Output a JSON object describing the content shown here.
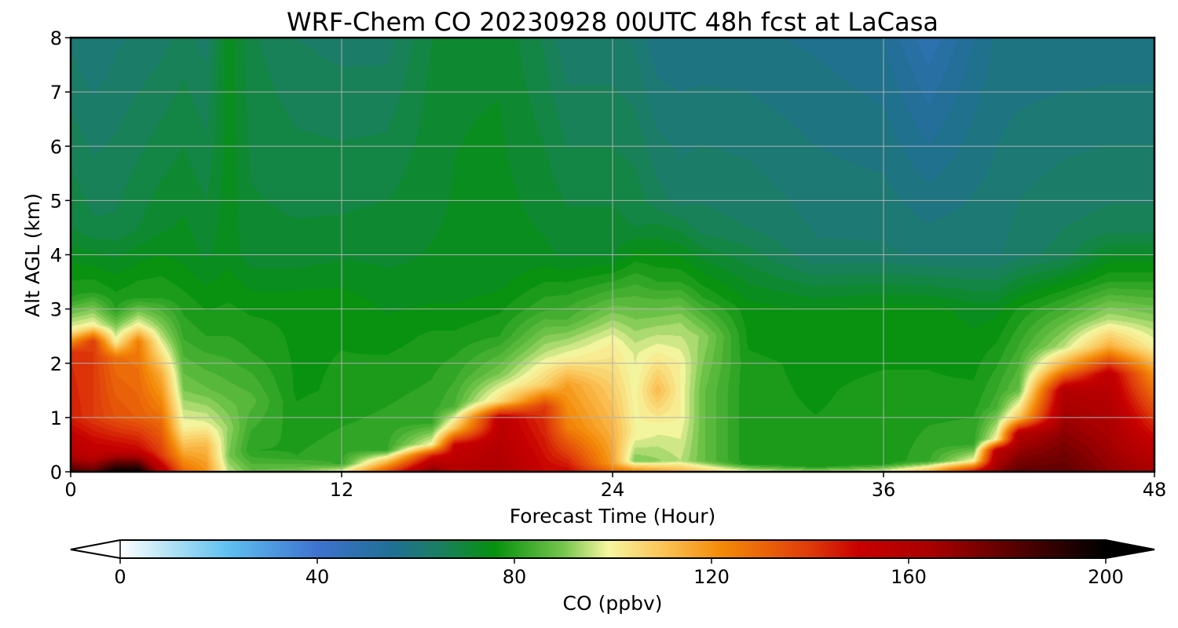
{
  "chart_data": {
    "type": "heatmap",
    "title": "WRF-Chem CO  20230928 00UTC 48h fcst at LaCasa",
    "xlabel": "Forecast Time (Hour)",
    "ylabel": "Alt AGL (km)",
    "xlim": [
      0,
      48
    ],
    "ylim": [
      0,
      8
    ],
    "xticks": [
      "0",
      "12",
      "24",
      "36",
      "48"
    ],
    "yticks": [
      "0",
      "1",
      "2",
      "3",
      "4",
      "5",
      "6",
      "7",
      "8"
    ],
    "grid": true,
    "colorbar": {
      "label": "CO  (ppbv)",
      "range": [
        0,
        200
      ],
      "ticks": [
        "0",
        "40",
        "80",
        "120",
        "160",
        "200"
      ],
      "extend": "both",
      "orientation": "horizontal",
      "position": "bottom",
      "colors": [
        {
          "v": 0,
          "c": "#ffffff"
        },
        {
          "v": 10,
          "c": "#b3e2f5"
        },
        {
          "v": 22,
          "c": "#5ebff0"
        },
        {
          "v": 40,
          "c": "#3e73d0"
        },
        {
          "v": 55,
          "c": "#206f95"
        },
        {
          "v": 65,
          "c": "#1a7f60"
        },
        {
          "v": 76,
          "c": "#06910e"
        },
        {
          "v": 90,
          "c": "#76c64d"
        },
        {
          "v": 99,
          "c": "#f6f6a0"
        },
        {
          "v": 110,
          "c": "#fbc458"
        },
        {
          "v": 122,
          "c": "#f48a08"
        },
        {
          "v": 140,
          "c": "#df3a0a"
        },
        {
          "v": 150,
          "c": "#c80000"
        },
        {
          "v": 165,
          "c": "#a80000"
        },
        {
          "v": 180,
          "c": "#5e0000"
        },
        {
          "v": 200,
          "c": "#000000"
        }
      ]
    },
    "series": [
      {
        "x": 0,
        "profile": [
          [
            0,
            185
          ],
          [
            0.3,
            160
          ],
          [
            1.0,
            145
          ],
          [
            2.2,
            142
          ],
          [
            2.6,
            100
          ],
          [
            3.2,
            80
          ],
          [
            4.5,
            70
          ],
          [
            8,
            62
          ]
        ]
      },
      {
        "x": 1,
        "profile": [
          [
            0,
            180
          ],
          [
            0.3,
            155
          ],
          [
            1.0,
            140
          ],
          [
            2.4,
            140
          ],
          [
            2.7,
            100
          ],
          [
            3.3,
            80
          ],
          [
            4.5,
            68
          ],
          [
            8,
            60
          ]
        ]
      },
      {
        "x": 2,
        "profile": [
          [
            0,
            200
          ],
          [
            0.4,
            152
          ],
          [
            1.0,
            135
          ],
          [
            2.1,
            128
          ],
          [
            2.4,
            100
          ],
          [
            3.0,
            80
          ],
          [
            4.5,
            68
          ],
          [
            8,
            62
          ]
        ]
      },
      {
        "x": 3,
        "profile": [
          [
            0,
            200
          ],
          [
            0.4,
            150
          ],
          [
            1.0,
            132
          ],
          [
            2.4,
            125
          ],
          [
            2.7,
            100
          ],
          [
            3.2,
            80
          ],
          [
            4.5,
            70
          ],
          [
            8,
            63
          ]
        ]
      },
      {
        "x": 4,
        "profile": [
          [
            0,
            160
          ],
          [
            0.3,
            140
          ],
          [
            1.0,
            128
          ],
          [
            1.8,
            115
          ],
          [
            2.5,
            95
          ],
          [
            3.2,
            80
          ],
          [
            4.5,
            72
          ],
          [
            8,
            64
          ]
        ]
      },
      {
        "x": 5,
        "profile": [
          [
            0,
            130
          ],
          [
            0.3,
            118
          ],
          [
            0.8,
            100
          ],
          [
            1.5,
            90
          ],
          [
            2.5,
            82
          ],
          [
            4,
            74
          ],
          [
            8,
            66
          ]
        ]
      },
      {
        "x": 6,
        "profile": [
          [
            0,
            120
          ],
          [
            0.5,
            112
          ],
          [
            0.9,
            98
          ],
          [
            1.5,
            88
          ],
          [
            2.5,
            80
          ],
          [
            4,
            72
          ],
          [
            8,
            64
          ]
        ]
      },
      {
        "x": 7,
        "profile": [
          [
            0,
            95
          ],
          [
            0.3,
            90
          ],
          [
            0.8,
            92
          ],
          [
            1.5,
            86
          ],
          [
            2.5,
            80
          ],
          [
            4,
            74
          ],
          [
            8,
            74
          ]
        ]
      },
      {
        "x": 8,
        "profile": [
          [
            0,
            88
          ],
          [
            0.4,
            80
          ],
          [
            1.3,
            86
          ],
          [
            2.2,
            80
          ],
          [
            3,
            77
          ],
          [
            4,
            71
          ],
          [
            8,
            68
          ]
        ]
      },
      {
        "x": 10,
        "profile": [
          [
            0,
            90
          ],
          [
            0.3,
            80
          ],
          [
            1.5,
            77
          ],
          [
            3,
            77
          ],
          [
            4,
            71
          ],
          [
            8,
            65
          ]
        ]
      },
      {
        "x": 12,
        "profile": [
          [
            0,
            100
          ],
          [
            0.15,
            82
          ],
          [
            1.5,
            78
          ],
          [
            3,
            77
          ],
          [
            4.2,
            71
          ],
          [
            8,
            64
          ]
        ]
      },
      {
        "x": 14,
        "profile": [
          [
            0,
            135
          ],
          [
            0.2,
            110
          ],
          [
            0.4,
            82
          ],
          [
            2,
            78
          ],
          [
            3.5,
            73
          ],
          [
            8,
            64
          ]
        ]
      },
      {
        "x": 16,
        "profile": [
          [
            0,
            175
          ],
          [
            0.3,
            145
          ],
          [
            0.5,
            100
          ],
          [
            0.9,
            82
          ],
          [
            2.5,
            78
          ],
          [
            3.5,
            73
          ],
          [
            8,
            70
          ]
        ]
      },
      {
        "x": 17,
        "profile": [
          [
            0,
            160
          ],
          [
            0.5,
            150
          ],
          [
            0.8,
            110
          ],
          [
            1.2,
            85
          ],
          [
            2.5,
            78
          ],
          [
            3.5,
            73
          ],
          [
            8,
            72
          ]
        ]
      },
      {
        "x": 19,
        "profile": [
          [
            0,
            162
          ],
          [
            1.0,
            155
          ],
          [
            1.3,
            105
          ],
          [
            1.8,
            90
          ],
          [
            2.5,
            80
          ],
          [
            3.5,
            74
          ],
          [
            8,
            72
          ]
        ]
      },
      {
        "x": 21,
        "profile": [
          [
            0,
            150
          ],
          [
            1.2,
            140
          ],
          [
            1.6,
            108
          ],
          [
            2.2,
            95
          ],
          [
            3,
            82
          ],
          [
            4,
            73
          ],
          [
            8,
            67
          ]
        ]
      },
      {
        "x": 22,
        "profile": [
          [
            0,
            150
          ],
          [
            0.8,
            125
          ],
          [
            1.6,
            118
          ],
          [
            2.1,
            100
          ],
          [
            2.8,
            85
          ],
          [
            4,
            72
          ],
          [
            8,
            63
          ]
        ]
      },
      {
        "x": 24,
        "profile": [
          [
            0,
            130
          ],
          [
            0.15,
            118
          ],
          [
            1.5,
            108
          ],
          [
            2.4,
            100
          ],
          [
            3.2,
            85
          ],
          [
            4,
            72
          ],
          [
            8,
            63
          ]
        ]
      },
      {
        "x": 25,
        "profile": [
          [
            0,
            125
          ],
          [
            0.2,
            90
          ],
          [
            0.7,
            100
          ],
          [
            2.2,
            97
          ],
          [
            3.5,
            82
          ],
          [
            4.5,
            70
          ],
          [
            8,
            62
          ]
        ]
      },
      {
        "x": 26,
        "profile": [
          [
            0,
            120
          ],
          [
            0.2,
            92
          ],
          [
            0.9,
            100
          ],
          [
            1.5,
            112
          ],
          [
            2.2,
            100
          ],
          [
            3.5,
            80
          ],
          [
            5,
            66
          ],
          [
            8,
            58
          ]
        ]
      },
      {
        "x": 27,
        "profile": [
          [
            0,
            115
          ],
          [
            0.2,
            95
          ],
          [
            1.0,
            100
          ],
          [
            2.0,
            100
          ],
          [
            2.8,
            92
          ],
          [
            3.5,
            80
          ],
          [
            5,
            64
          ],
          [
            8,
            58
          ]
        ]
      },
      {
        "x": 28,
        "profile": [
          [
            0,
            110
          ],
          [
            0.2,
            88
          ],
          [
            1.5,
            88
          ],
          [
            2.5,
            92
          ],
          [
            3.2,
            80
          ],
          [
            4.5,
            66
          ],
          [
            8,
            58
          ]
        ]
      },
      {
        "x": 30,
        "profile": [
          [
            0,
            100
          ],
          [
            0.15,
            78
          ],
          [
            2,
            78
          ],
          [
            3,
            76
          ],
          [
            4.5,
            65
          ],
          [
            8,
            58
          ]
        ]
      },
      {
        "x": 33,
        "profile": [
          [
            0,
            95
          ],
          [
            0.1,
            78
          ],
          [
            2,
            77
          ],
          [
            3,
            75
          ],
          [
            4,
            63
          ],
          [
            8,
            57
          ]
        ]
      },
      {
        "x": 36,
        "profile": [
          [
            0,
            100
          ],
          [
            0.15,
            78
          ],
          [
            1.5,
            78
          ],
          [
            3,
            76
          ],
          [
            4,
            63
          ],
          [
            8,
            55
          ]
        ]
      },
      {
        "x": 38,
        "profile": [
          [
            0,
            115
          ],
          [
            0.2,
            82
          ],
          [
            1.5,
            78
          ],
          [
            3,
            76
          ],
          [
            4,
            62
          ],
          [
            7.5,
            50
          ],
          [
            8,
            48
          ]
        ]
      },
      {
        "x": 40,
        "profile": [
          [
            0,
            150
          ],
          [
            0.2,
            100
          ],
          [
            0.5,
            82
          ],
          [
            1.5,
            78
          ],
          [
            3,
            74
          ],
          [
            4,
            62
          ],
          [
            8,
            55
          ]
        ]
      },
      {
        "x": 41,
        "profile": [
          [
            0,
            170
          ],
          [
            0.4,
            155
          ],
          [
            0.6,
            100
          ],
          [
            1.2,
            84
          ],
          [
            3,
            74
          ],
          [
            4,
            62
          ],
          [
            8,
            58
          ]
        ]
      },
      {
        "x": 42,
        "profile": [
          [
            0,
            180
          ],
          [
            0.7,
            160
          ],
          [
            1.0,
            110
          ],
          [
            1.5,
            88
          ],
          [
            3,
            78
          ],
          [
            4,
            64
          ],
          [
            8,
            58
          ]
        ]
      },
      {
        "x": 44,
        "profile": [
          [
            0,
            180
          ],
          [
            1.5,
            160
          ],
          [
            1.9,
            120
          ],
          [
            2.3,
            95
          ],
          [
            3.2,
            80
          ],
          [
            4,
            66
          ],
          [
            8,
            58
          ]
        ]
      },
      {
        "x": 46,
        "profile": [
          [
            0,
            170
          ],
          [
            1.8,
            155
          ],
          [
            2.3,
            115
          ],
          [
            2.8,
            95
          ],
          [
            3.5,
            80
          ],
          [
            4.5,
            66
          ],
          [
            8,
            58
          ]
        ]
      },
      {
        "x": 48,
        "profile": [
          [
            0,
            165
          ],
          [
            1.0,
            140
          ],
          [
            1.8,
            120
          ],
          [
            2.3,
            100
          ],
          [
            3.5,
            80
          ],
          [
            4.5,
            66
          ],
          [
            8,
            58
          ]
        ]
      }
    ]
  }
}
